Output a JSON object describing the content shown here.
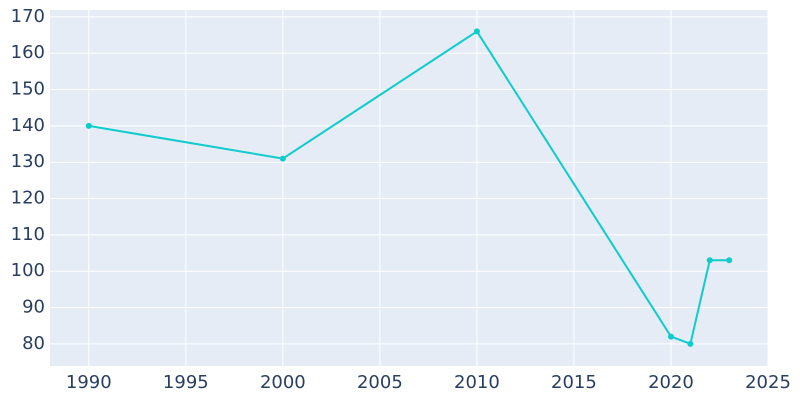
{
  "chart_data": {
    "type": "line",
    "x": [
      1990,
      2000,
      2010,
      2020,
      2021,
      2022,
      2023
    ],
    "series": [
      {
        "color": "#0fcccc",
        "values": [
          140,
          131,
          166,
          82,
          80,
          103,
          103
        ]
      }
    ],
    "xlim": [
      1988,
      2025
    ],
    "xticks": [
      1990,
      1995,
      2000,
      2005,
      2010,
      2015,
      2020,
      2025
    ],
    "ylim": [
      73.9,
      171.9
    ],
    "yticks": [
      80,
      90,
      100,
      110,
      120,
      130,
      140,
      150,
      160,
      170
    ],
    "grid": true
  }
}
